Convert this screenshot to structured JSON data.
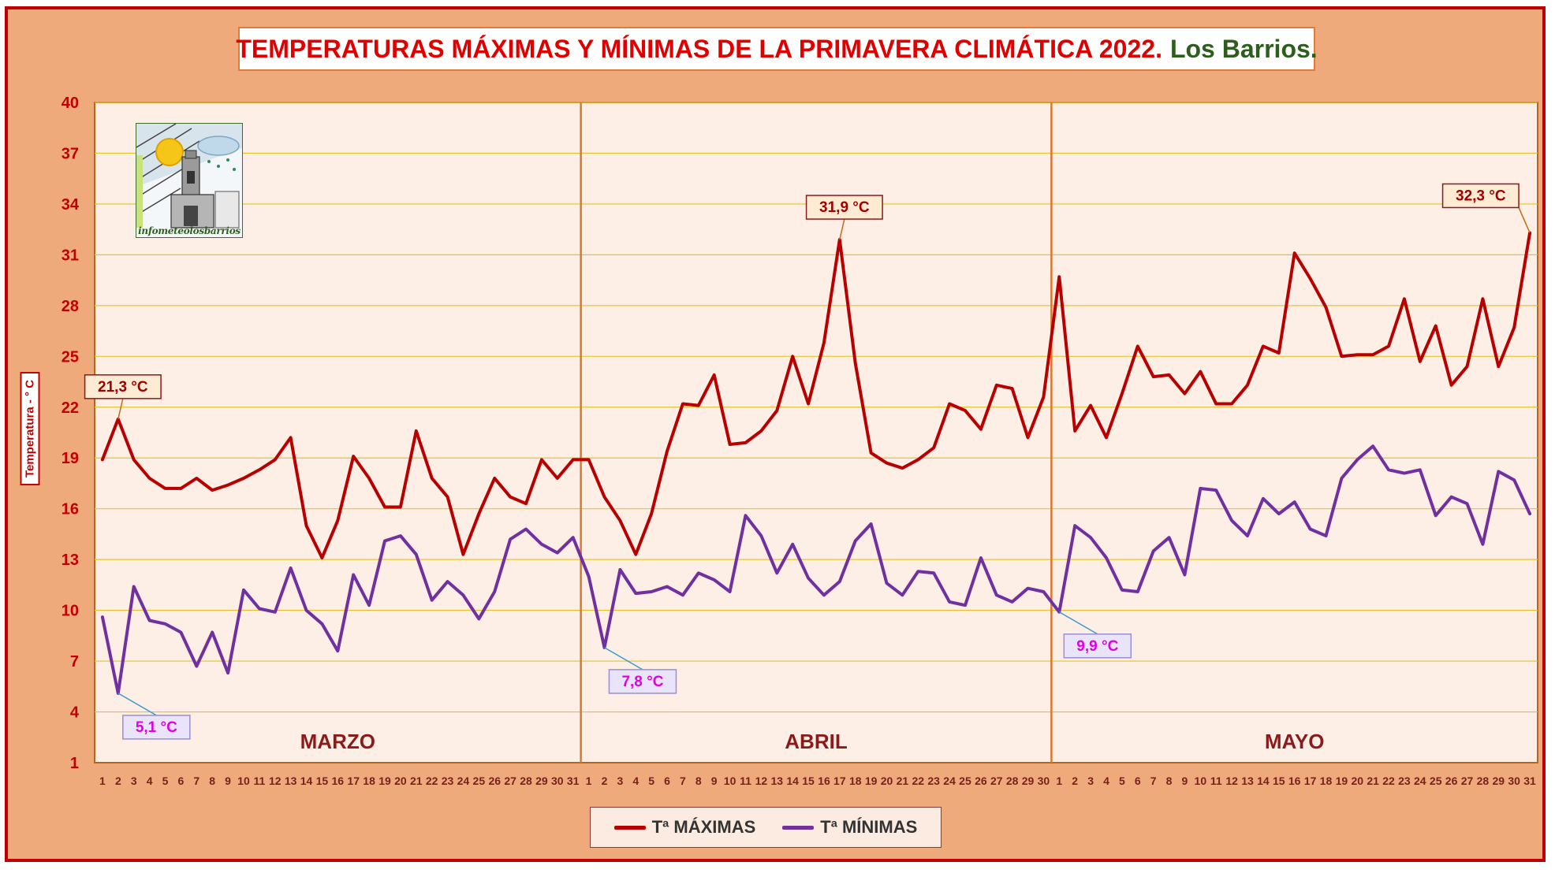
{
  "title": {
    "main": "TEMPERATURAS MÁXIMAS Y MÍNIMAS DE LA PRIMAVERA CLIMÁTICA 2022.",
    "place": "Los Barrios."
  },
  "logo": {
    "text": "infometeolosbarrios"
  },
  "colors": {
    "background": "#EFAA7C",
    "plot_background": "#FDEEE6",
    "max_line": "#B80000",
    "min_line": "#7030A0",
    "grid": "#E6C32E",
    "month_divider": "#D9792F",
    "title_red": "#E00000",
    "title_green": "#2E5E1E"
  },
  "legend": {
    "max_label": "Tª MÁXIMAS",
    "min_label": "Tª MÍNIMAS"
  },
  "chart_data": {
    "type": "line",
    "ylabel": "Temperatura - ° C",
    "xlabel": "",
    "ylim": [
      1,
      40
    ],
    "yticks": [
      1,
      4,
      7,
      10,
      13,
      16,
      19,
      22,
      25,
      28,
      31,
      34,
      37,
      40
    ],
    "grid": true,
    "legend_position": "bottom",
    "months": [
      {
        "name": "MARZO",
        "days": 31
      },
      {
        "name": "ABRIL",
        "days": 30
      },
      {
        "name": "MAYO",
        "days": 31
      }
    ],
    "series": [
      {
        "name": "Tª MÁXIMAS",
        "values": [
          18.9,
          21.3,
          18.9,
          17.8,
          17.2,
          17.2,
          17.8,
          17.1,
          17.4,
          17.8,
          18.3,
          18.9,
          20.2,
          15.0,
          13.1,
          15.3,
          19.1,
          17.8,
          16.1,
          16.1,
          20.6,
          17.8,
          16.7,
          13.3,
          15.7,
          17.8,
          16.7,
          16.3,
          18.9,
          17.8,
          18.9,
          18.9,
          16.7,
          15.3,
          13.3,
          15.7,
          19.4,
          22.2,
          22.1,
          23.9,
          19.8,
          19.9,
          20.6,
          21.8,
          25.0,
          22.2,
          25.8,
          31.9,
          24.6,
          19.3,
          18.7,
          18.4,
          18.9,
          19.6,
          22.2,
          21.8,
          20.7,
          23.3,
          23.1,
          20.2,
          22.6,
          29.7,
          20.6,
          22.1,
          20.2,
          22.8,
          25.6,
          23.8,
          23.9,
          22.8,
          24.1,
          22.2,
          22.2,
          23.3,
          25.6,
          25.2,
          31.1,
          29.6,
          27.9,
          25.0,
          25.1,
          25.1,
          25.6,
          28.4,
          24.7,
          26.8,
          23.3,
          24.4,
          28.4,
          24.4,
          26.7,
          32.3
        ]
      },
      {
        "name": "Tª MÍNIMAS",
        "values": [
          9.6,
          5.1,
          11.4,
          9.4,
          9.2,
          8.7,
          6.7,
          8.7,
          6.3,
          11.2,
          10.1,
          9.9,
          12.5,
          10.0,
          9.2,
          7.6,
          12.1,
          10.3,
          14.1,
          14.4,
          13.3,
          10.6,
          11.7,
          10.9,
          9.5,
          11.1,
          14.2,
          14.8,
          13.9,
          13.4,
          14.3,
          12.0,
          7.8,
          12.4,
          11.0,
          11.1,
          11.4,
          10.9,
          12.2,
          11.8,
          11.1,
          15.6,
          14.4,
          12.2,
          13.9,
          11.9,
          10.9,
          11.7,
          14.1,
          15.1,
          11.6,
          10.9,
          12.3,
          12.2,
          10.5,
          10.3,
          13.1,
          10.9,
          10.5,
          11.3,
          11.1,
          9.9,
          15.0,
          14.3,
          13.1,
          11.2,
          11.1,
          13.5,
          14.3,
          12.1,
          17.2,
          17.1,
          15.3,
          14.4,
          16.6,
          15.7,
          16.4,
          14.8,
          14.4,
          17.8,
          18.9,
          19.7,
          18.3,
          18.1,
          18.3,
          15.6,
          16.7,
          16.3,
          13.9,
          18.2,
          17.7,
          15.7
        ]
      }
    ],
    "annotations": [
      {
        "series": 0,
        "index": 1,
        "label": "21,3 °C"
      },
      {
        "series": 0,
        "index": 47,
        "label": "31,9 °C"
      },
      {
        "series": 0,
        "index": 91,
        "label": "32,3 °C"
      },
      {
        "series": 1,
        "index": 1,
        "label": "5,1 °C"
      },
      {
        "series": 1,
        "index": 32,
        "label": "7,8 °C"
      },
      {
        "series": 1,
        "index": 61,
        "label": "9,9 °C"
      }
    ]
  }
}
